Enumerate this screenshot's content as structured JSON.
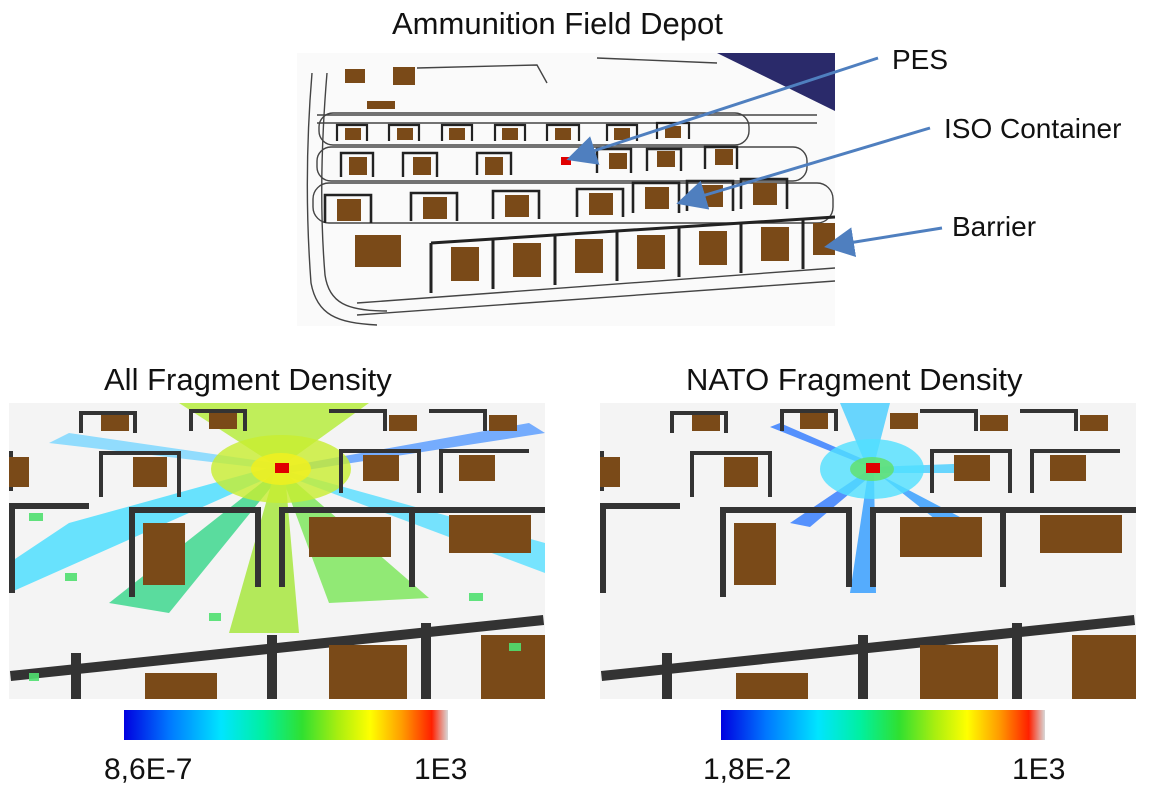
{
  "top": {
    "title": "Ammunition Field Depot",
    "annotations": {
      "pes": "PES",
      "iso_container": "ISO Container",
      "barrier": "Barrier"
    }
  },
  "panels": [
    {
      "title": "All Fragment Density",
      "scale_min": "8,6E-7",
      "scale_max": "1E3"
    },
    {
      "title": "NATO Fragment Density",
      "scale_min": "1,8E-2",
      "scale_max": "1E3"
    }
  ],
  "colors": {
    "container": "#7a4a18",
    "barrier": "#333333",
    "pes": "#e00000",
    "arrow": "#4f7fbf",
    "corner": "#2a2a6a"
  }
}
